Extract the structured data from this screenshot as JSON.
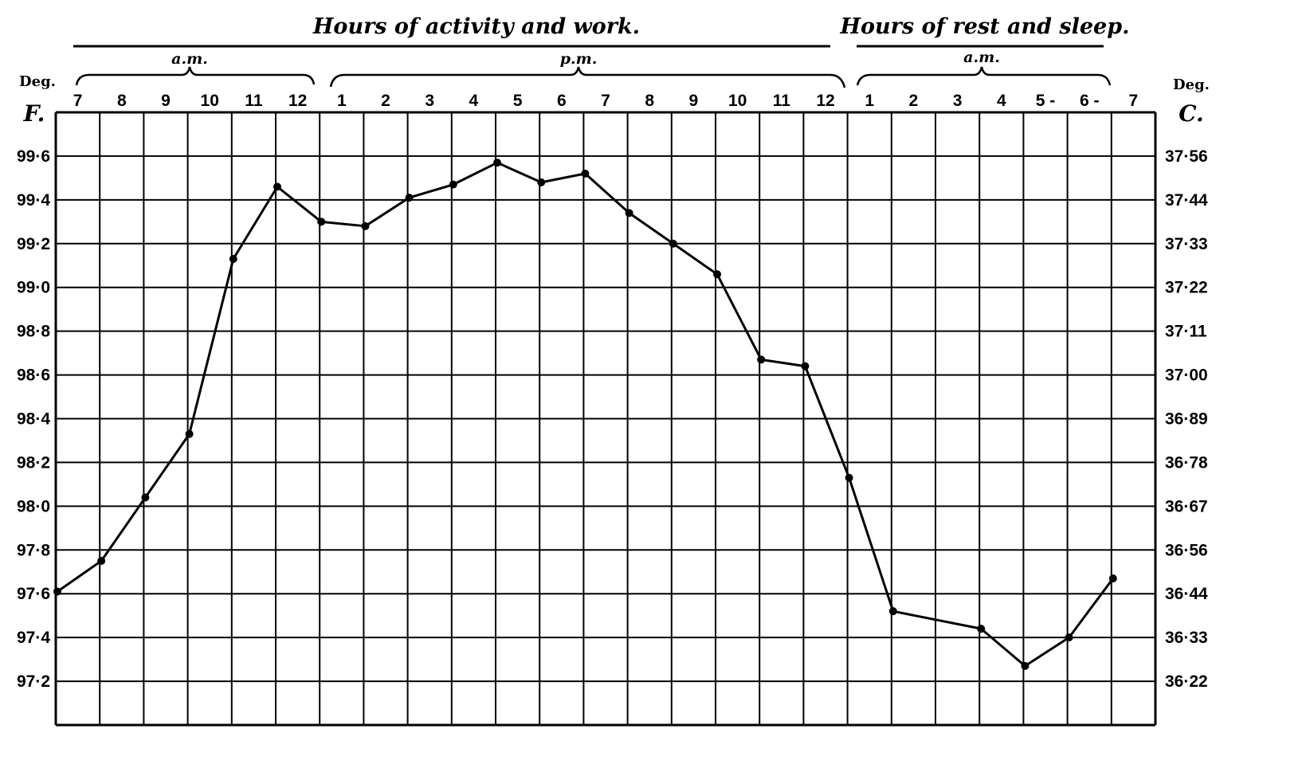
{
  "chart_data": {
    "type": "line",
    "headers": {
      "activity": "Hours of activity and work.",
      "rest": "Hours of rest and sleep."
    },
    "period_labels": {
      "am1": "a.m.",
      "pm": "p.m.",
      "am2": "a.m."
    },
    "left_axis_unit": {
      "deg": "Deg.",
      "scale": "F."
    },
    "right_axis_unit": {
      "deg": "Deg.",
      "scale": "C."
    },
    "x_tick_labels": [
      "7",
      "8",
      "9",
      "10",
      "11",
      "12",
      "1",
      "2",
      "3",
      "4",
      "5",
      "6",
      "7",
      "8",
      "9",
      "10",
      "11",
      "12",
      "1",
      "2",
      "3",
      "4",
      "5 -",
      "6 -",
      "7"
    ],
    "y_ticks_f": [
      "99·6",
      "99·4",
      "99·2",
      "99·0",
      "98·8",
      "98·6",
      "98·4",
      "98·2",
      "98·0",
      "97·8",
      "97·6",
      "97·4",
      "97·2"
    ],
    "y_ticks_f_values": [
      99.6,
      99.4,
      99.2,
      99.0,
      98.8,
      98.6,
      98.4,
      98.2,
      98.0,
      97.8,
      97.6,
      97.4,
      97.2
    ],
    "y_ticks_c": [
      "37·56",
      "37·44",
      "37·33",
      "37·22",
      "37·11",
      "37·00",
      "36·89",
      "36·78",
      "36·67",
      "36·56",
      "36·44",
      "36·33",
      "36·22"
    ],
    "ylim": [
      97.0,
      99.8
    ],
    "grid": true,
    "series": [
      {
        "values_f": [
          97.61,
          97.75,
          98.04,
          98.33,
          99.13,
          99.46,
          99.3,
          99.28,
          99.41,
          99.47,
          99.57,
          99.48,
          99.52,
          99.34,
          99.2,
          99.06,
          98.67,
          98.64,
          98.13,
          97.52,
          null,
          97.44,
          97.27,
          97.4,
          97.67
        ]
      }
    ],
    "line_color": "#000000"
  }
}
